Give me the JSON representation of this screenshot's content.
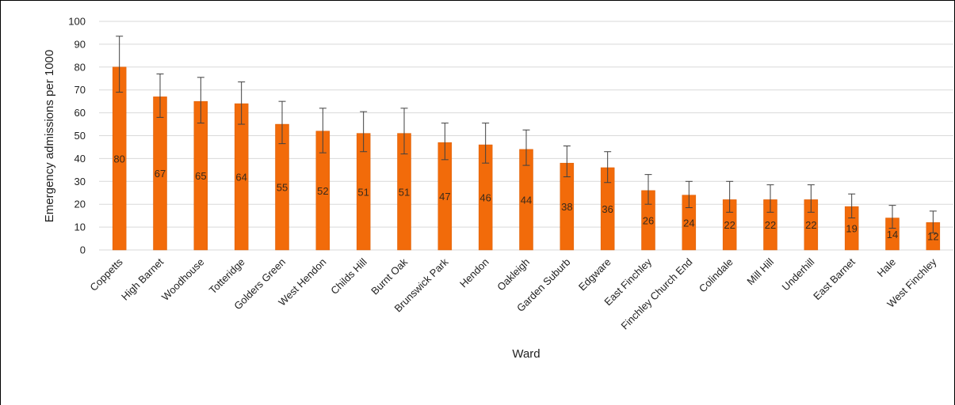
{
  "chart_data": {
    "type": "bar",
    "title": "",
    "xlabel": "Ward",
    "ylabel": "Emergency admissions per 1000",
    "ylim": [
      0,
      100
    ],
    "yticks": [
      0,
      10,
      20,
      30,
      40,
      50,
      60,
      70,
      80,
      90,
      100
    ],
    "grid": true,
    "categories": [
      "Coppetts",
      "High Barnet",
      "Woodhouse",
      "Totteridge",
      "Golders Green",
      "West Hendon",
      "Childs Hill",
      "Burnt Oak",
      "Brunswick Park",
      "Hendon",
      "Oakleigh",
      "Garden Suburb",
      "Edgware",
      "East Finchley",
      "Finchley Church End",
      "Colindale",
      "Mill Hill",
      "Underhill",
      "East Barnet",
      "Hale",
      "West Finchley"
    ],
    "values": [
      80,
      67,
      65,
      64,
      55,
      52,
      51,
      51,
      47,
      46,
      44,
      38,
      36,
      26,
      24,
      22,
      22,
      22,
      19,
      14,
      12
    ],
    "error_low": [
      69,
      58,
      55.5,
      55,
      46.5,
      42.5,
      43,
      42,
      39.5,
      38,
      37,
      32,
      29.5,
      20,
      18.5,
      16.5,
      16.5,
      16.5,
      14,
      9.5,
      7.5
    ],
    "error_high": [
      93.5,
      77,
      75.5,
      73.5,
      65,
      62,
      60.5,
      62,
      55.5,
      55.5,
      52.5,
      45.5,
      43,
      33,
      30,
      30,
      28.5,
      28.5,
      24.5,
      19.5,
      17
    ],
    "data_labels": [
      "80",
      "67",
      "65",
      "64",
      "55",
      "52",
      "51",
      "51",
      "47",
      "46",
      "44",
      "38",
      "36",
      "26",
      "24",
      "22",
      "22",
      "22",
      "19",
      "14",
      "12"
    ],
    "colors": {
      "bar": "#f26b0a",
      "bar_edge": "#d95a00",
      "grid": "#d9d9d9",
      "error": "#404040"
    }
  }
}
